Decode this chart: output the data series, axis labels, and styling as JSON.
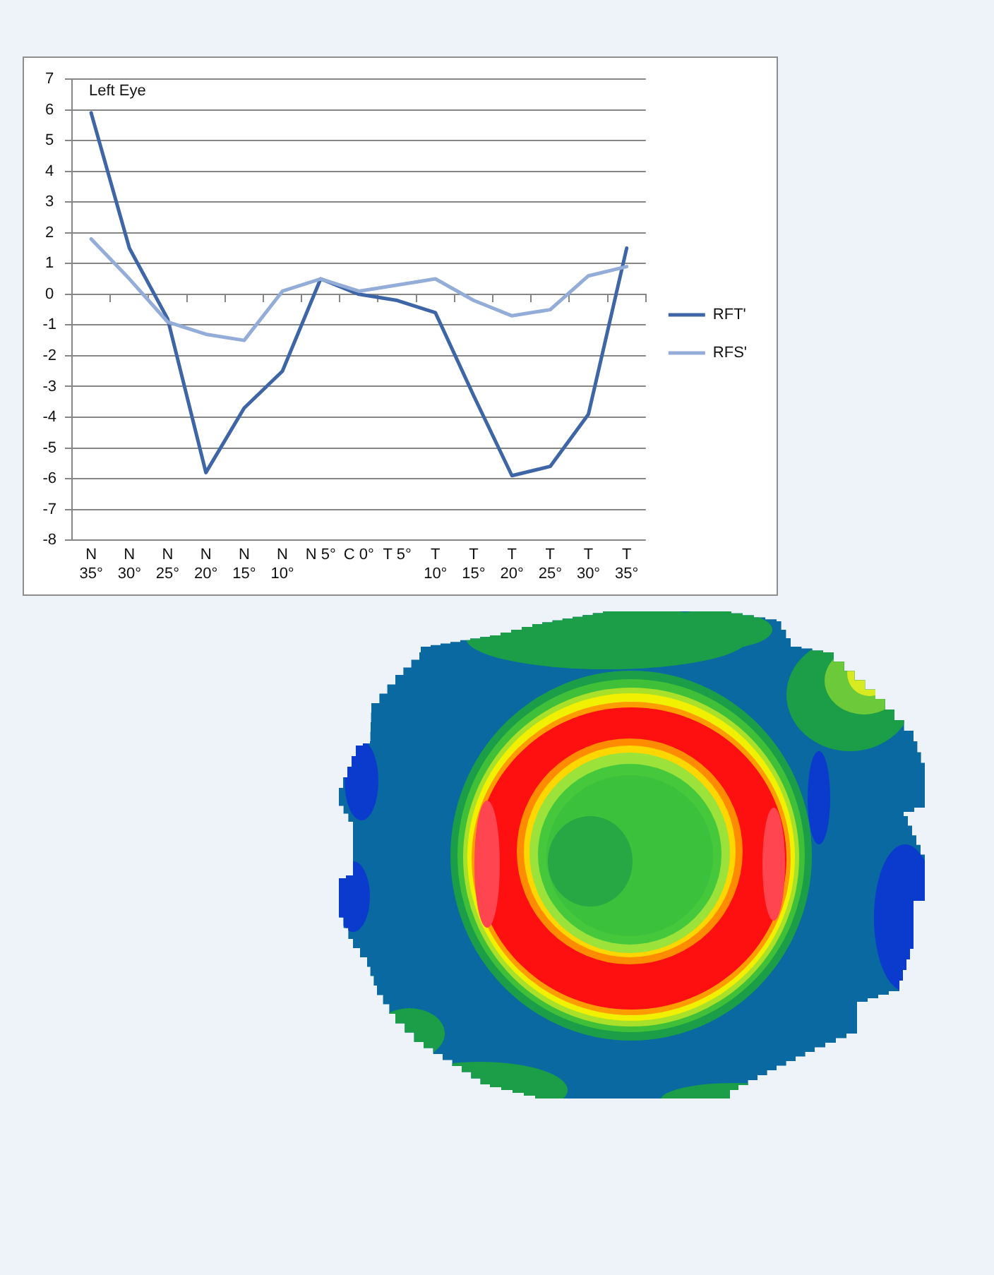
{
  "chart_data": {
    "type": "line",
    "title": "Left Eye",
    "categories": [
      "N 35°",
      "N 30°",
      "N 25°",
      "N 20°",
      "N 15°",
      "N 10°",
      "N 5°",
      "C 0°",
      "T 5°",
      "T 10°",
      "T 15°",
      "T 20°",
      "T 25°",
      "T 30°",
      "T 35°"
    ],
    "series": [
      {
        "name": "RFT'",
        "color": "#3e66a7",
        "values": [
          5.9,
          1.5,
          -0.8,
          -5.8,
          -3.7,
          -2.5,
          0.5,
          0,
          -0.2,
          -0.6,
          -3.3,
          -5.9,
          -5.6,
          -3.9,
          1.5
        ]
      },
      {
        "name": "RFS'",
        "color": "#93add8",
        "values": [
          1.8,
          0.5,
          -0.9,
          -1.3,
          -1.5,
          0.1,
          0.5,
          0.1,
          0.3,
          0.5,
          -0.2,
          -0.7,
          -0.5,
          0.6,
          0.9
        ]
      }
    ],
    "ylim": [
      -8,
      7
    ],
    "yticks": [
      -8,
      -7,
      -6,
      -5,
      -4,
      -3,
      -2,
      -1,
      0,
      1,
      2,
      3,
      4,
      5,
      6,
      7
    ],
    "grid": "y",
    "legend": "right"
  }
}
